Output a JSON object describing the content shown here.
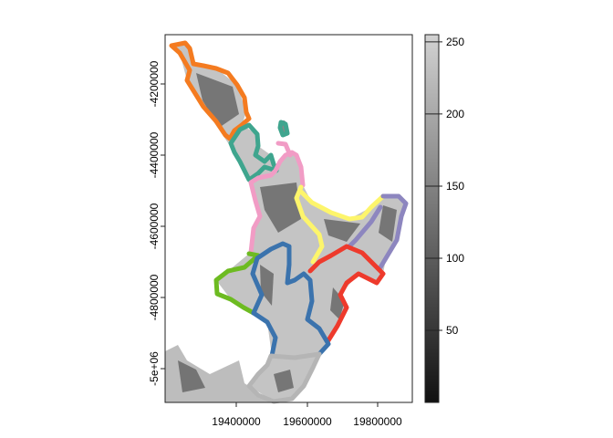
{
  "map": {
    "x_ticks": [
      "19400000",
      "19600000",
      "19800000"
    ],
    "y_ticks": [
      "-4200000",
      "-4400000",
      "-4600000",
      "-4800000",
      "-5e+06"
    ],
    "raster_palette": "grayscale",
    "regions": [
      {
        "id": "northland",
        "color": "#f47b20"
      },
      {
        "id": "auckland",
        "color": "#3fa58e"
      },
      {
        "id": "waikato",
        "color": "#f19cc5"
      },
      {
        "id": "bay-of-plenty",
        "color": "#fdf56b"
      },
      {
        "id": "gisborne",
        "color": "#8d86bf"
      },
      {
        "id": "hawkes-bay",
        "color": "#ee3a2c"
      },
      {
        "id": "taranaki",
        "color": "#6dbb21"
      },
      {
        "id": "manawatu-whanganui",
        "color": "#3b73ad"
      },
      {
        "id": "wellington",
        "color": "#b5b5b5"
      }
    ]
  },
  "legend": {
    "ticks": [
      "250",
      "200",
      "150",
      "100",
      "50"
    ],
    "tick_values": [
      250,
      200,
      150,
      100,
      50
    ],
    "range": [
      0,
      255
    ]
  }
}
